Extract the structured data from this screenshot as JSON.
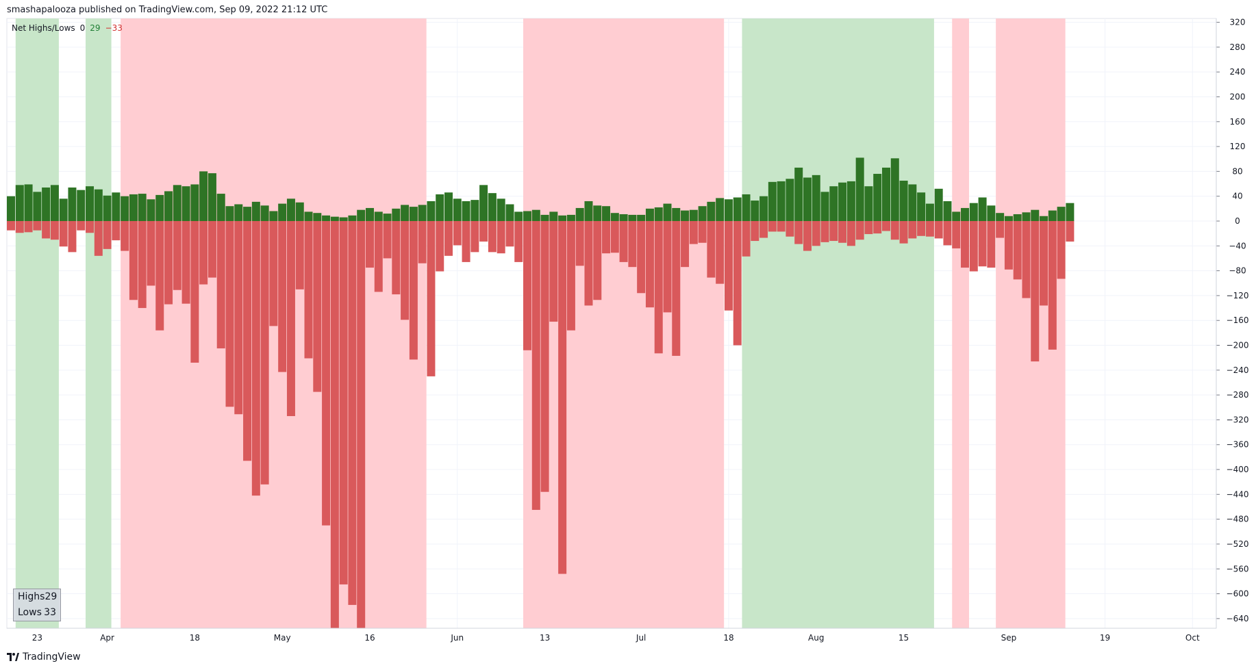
{
  "header": {
    "text": "smashapalooza published on TradingView.com, Sep 09, 2022 21:12 UTC"
  },
  "legend": {
    "title": "Net Highs/Lows",
    "symbol": "0",
    "highs_value": "29",
    "lows_value": "−33"
  },
  "value_box": {
    "highs_label": "Highs",
    "highs_value": "29",
    "lows_label": "Lows",
    "lows_value": "33"
  },
  "footer": {
    "brand": "TradingView"
  },
  "colors": {
    "highs_bar": "#2e7425",
    "lows_bar": "#d9595b",
    "bull_band": "#c8e6c9",
    "bear_band": "#ffcdd2",
    "grid": "#f0f3fa",
    "axis_text": "#131722"
  },
  "chart_data": {
    "type": "bar",
    "title": "Net Highs/Lows",
    "ylim": [
      -660,
      330
    ],
    "y_ticks": [
      320,
      280,
      240,
      200,
      160,
      120,
      80,
      40,
      0,
      -40,
      -80,
      -120,
      -160,
      -200,
      -240,
      -280,
      -320,
      -360,
      -400,
      -440,
      -480,
      -520,
      -560,
      -600,
      -640
    ],
    "x_ticks": [
      "23",
      "Apr",
      "18",
      "May",
      "16",
      "Jun",
      "13",
      "Jul",
      "18",
      "Aug",
      "15",
      "Sep",
      "19",
      "Oct"
    ],
    "x_tick_bar_index": [
      3,
      11,
      21,
      31,
      41,
      51,
      61,
      72,
      82,
      92,
      102,
      114,
      125,
      135
    ],
    "series": [
      {
        "name": "Highs",
        "values": [
          40,
          58,
          59,
          47,
          54,
          58,
          36,
          54,
          50,
          56,
          51,
          41,
          46,
          40,
          43,
          44,
          35,
          42,
          48,
          58,
          56,
          59,
          80,
          77,
          44,
          24,
          27,
          23,
          31,
          25,
          16,
          28,
          36,
          30,
          15,
          13,
          9,
          7,
          6,
          9,
          18,
          21,
          15,
          12,
          20,
          26,
          23,
          26,
          32,
          43,
          46,
          36,
          32,
          34,
          58,
          45,
          36,
          27,
          15,
          16,
          18,
          10,
          15,
          9,
          10,
          21,
          32,
          25,
          24,
          13,
          11,
          10,
          10,
          20,
          22,
          28,
          21,
          17,
          18,
          24,
          31,
          37,
          35,
          38,
          43,
          33,
          40,
          63,
          64,
          68,
          86,
          70,
          74,
          47,
          56,
          62,
          64,
          102,
          56,
          76,
          86,
          101,
          65,
          59,
          46,
          28,
          52,
          32,
          15,
          21,
          29,
          38,
          25,
          13,
          8,
          11,
          14,
          18,
          8,
          17,
          23,
          29
        ]
      },
      {
        "name": "Lows",
        "values": [
          -15,
          -19,
          -18,
          -15,
          -28,
          -30,
          -41,
          -50,
          -15,
          -19,
          -56,
          -45,
          -31,
          -48,
          -127,
          -140,
          -104,
          -176,
          -134,
          -111,
          -133,
          -228,
          -102,
          -91,
          -205,
          -299,
          -311,
          -386,
          -442,
          -424,
          -169,
          -243,
          -314,
          -110,
          -221,
          -275,
          -490,
          -660,
          -585,
          -618,
          -660,
          -75,
          -114,
          -60,
          -118,
          -159,
          -223,
          -68,
          -250,
          -81,
          -56,
          -39,
          -66,
          -50,
          -33,
          -50,
          -52,
          -41,
          -66,
          -208,
          -465,
          -436,
          -162,
          -568,
          -176,
          -72,
          -136,
          -127,
          -52,
          -51,
          -66,
          -74,
          -116,
          -139,
          -213,
          -147,
          -217,
          -74,
          -37,
          -35,
          -91,
          -101,
          -144,
          -200,
          -57,
          -32,
          -27,
          -17,
          -17,
          -25,
          -37,
          -48,
          -40,
          -34,
          -32,
          -35,
          -40,
          -30,
          -21,
          -20,
          -16,
          -30,
          -36,
          -28,
          -24,
          -25,
          -28,
          -39,
          -44,
          -75,
          -81,
          -73,
          -75,
          -27,
          -78,
          -94,
          -124,
          -226,
          -136,
          -207,
          -93,
          -33
        ]
      }
    ],
    "bands": [
      {
        "signal": "bullish",
        "from_bar": 1,
        "to_bar": 5
      },
      {
        "signal": "bullish",
        "from_bar": 9,
        "to_bar": 11
      },
      {
        "signal": "bearish",
        "from_bar": 13,
        "to_bar": 47
      },
      {
        "signal": "bearish",
        "from_bar": 59,
        "to_bar": 81
      },
      {
        "signal": "bullish",
        "from_bar": 84,
        "to_bar": 105
      },
      {
        "signal": "bearish",
        "from_bar": 108,
        "to_bar": 109
      },
      {
        "signal": "bearish",
        "from_bar": 113,
        "to_bar": 120
      }
    ]
  }
}
